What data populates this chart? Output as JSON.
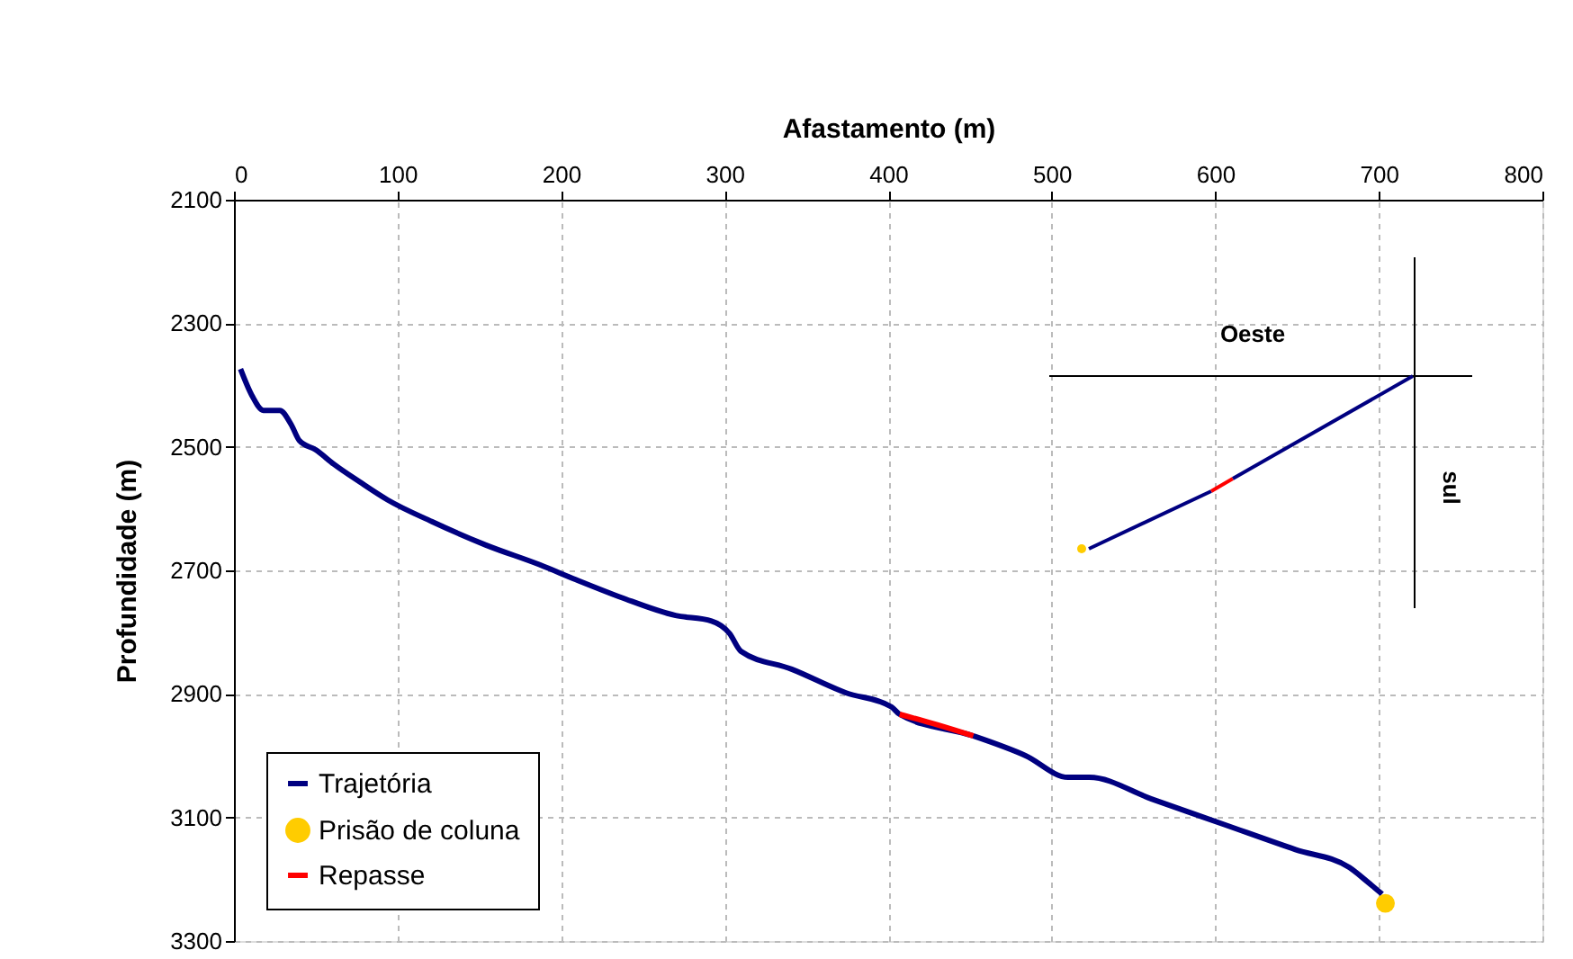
{
  "chart_data": {
    "type": "line",
    "xlabel": "Afastamento (m)",
    "ylabel": "Profundidade (m)",
    "xlim": [
      0,
      800
    ],
    "xticks": [
      0,
      100,
      200,
      300,
      400,
      500,
      600,
      700,
      800
    ],
    "ylim": [
      3300,
      2100
    ],
    "yticks": [
      2100,
      2300,
      2500,
      2700,
      2900,
      3100,
      3300
    ],
    "grid": true,
    "legend": "bottom left",
    "line_style": "solid",
    "annotations": [
      "Oeste",
      "sul"
    ],
    "series": [
      {
        "name": "Trajetória",
        "color": "#000080",
        "x": [
          4,
          11,
          18,
          28,
          35,
          40,
          50,
          61,
          77,
          94,
          121,
          154,
          187,
          209,
          237,
          270,
          292,
          303,
          310,
          341,
          374,
          402,
          407,
          452,
          484,
          510,
          523,
          561,
          605,
          649,
          682,
          693,
          702
        ],
        "values": [
          2374,
          2417,
          2441,
          2441,
          2464,
          2490,
          2505,
          2528,
          2557,
          2586,
          2621,
          2659,
          2691,
          2715,
          2744,
          2773,
          2782,
          2802,
          2831,
          2860,
          2898,
          2921,
          2933,
          2968,
          3000,
          3035,
          3035,
          3070,
          3111,
          3152,
          3181,
          3204,
          3224
        ]
      },
      {
        "name": "Prisão de coluna",
        "type": "scatter",
        "color": "#ffcc00",
        "x": [
          704
        ],
        "values": [
          3239
        ]
      },
      {
        "name": "Repasse",
        "color": "#ff0000",
        "x": [
          407,
          430,
          452
        ],
        "values": [
          2933,
          2950,
          2968
        ]
      }
    ]
  }
}
